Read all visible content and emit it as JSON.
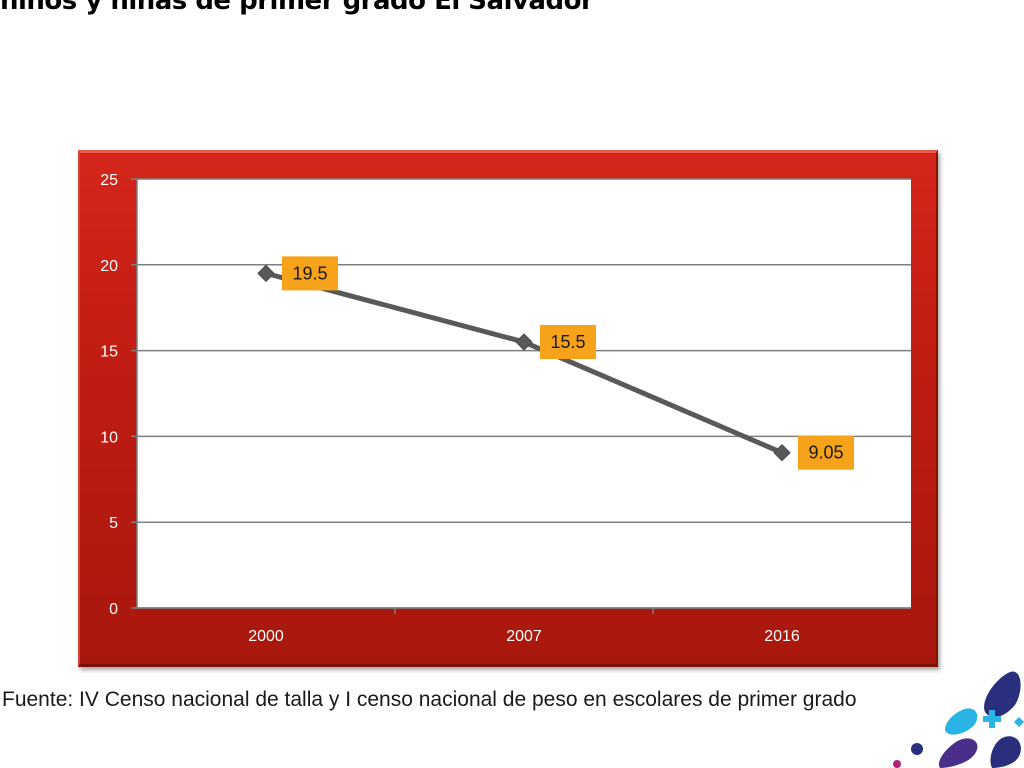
{
  "slide": {
    "title": "niños y niñas de primer grado El Salvador",
    "source": "Fuente: IV Censo nacional de talla y I censo nacional de peso en escolares de primer grado"
  },
  "colors": {
    "frame": "#c01d12",
    "plot_bg": "#ffffff",
    "line": "#595959",
    "label_bg": "#f7a21b",
    "gridline": "#7f7f7f"
  },
  "chart_data": {
    "type": "line",
    "title": "",
    "xlabel": "",
    "ylabel": "",
    "categories": [
      "2000",
      "2007",
      "2016"
    ],
    "series": [
      {
        "values": [
          19.5,
          15.5,
          9.05
        ]
      }
    ],
    "data_labels": [
      "19.5",
      "15.5",
      "9.05"
    ],
    "ylim": [
      0,
      25
    ],
    "yticks": [
      0,
      5,
      10,
      15,
      20,
      25
    ],
    "ytick_labels": [
      "0",
      "5",
      "10",
      "15",
      "20",
      "25"
    ],
    "grid": true,
    "legend": "none"
  }
}
